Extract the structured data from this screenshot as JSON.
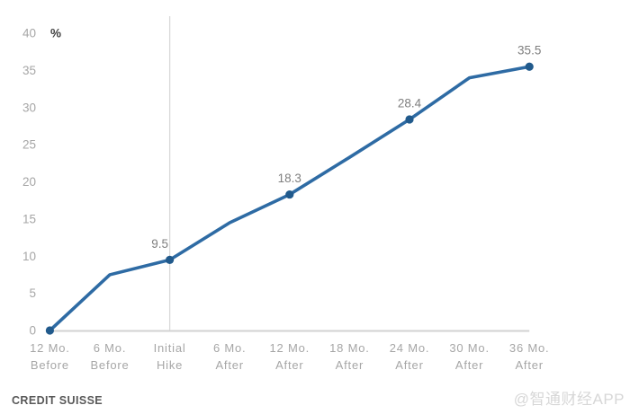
{
  "chart_data": {
    "type": "line",
    "title": "",
    "unit_label": "%",
    "categories": [
      [
        "12 Mo.",
        "Before"
      ],
      [
        "6 Mo.",
        "Before"
      ],
      [
        "Initial",
        "Hike"
      ],
      [
        "6 Mo.",
        "After"
      ],
      [
        "12 Mo.",
        "After"
      ],
      [
        "18 Mo.",
        "After"
      ],
      [
        "24 Mo.",
        "After"
      ],
      [
        "30 Mo.",
        "After"
      ],
      [
        "36 Mo.",
        "After"
      ]
    ],
    "values": [
      0,
      7.5,
      9.5,
      14.5,
      18.3,
      23.3,
      28.4,
      34,
      35.5
    ],
    "marker_indices": [
      0,
      2,
      4,
      6,
      8
    ],
    "point_labels": [
      {
        "index": 2,
        "text": "9.5"
      },
      {
        "index": 4,
        "text": "18.3"
      },
      {
        "index": 6,
        "text": "28.4"
      },
      {
        "index": 8,
        "text": "35.5"
      }
    ],
    "y_ticks": [
      0,
      5,
      10,
      15,
      20,
      25,
      30,
      35,
      40
    ],
    "ylim": [
      0,
      40
    ],
    "gridline_at_index": 2,
    "legend": "none",
    "grid": "single vertical gridline at Initial Hike",
    "colors": {
      "line": "#2e6ba4",
      "marker": "#215a8c",
      "axis_text": "#a6a6a6",
      "unit_text": "#404040",
      "data_label_text": "#7f7f7f",
      "gridline": "#d9d9d9",
      "axis_line": "#d2d2d2"
    }
  },
  "footer": {
    "source": "CREDIT SUISSE",
    "watermark": "@智通财经APP"
  }
}
